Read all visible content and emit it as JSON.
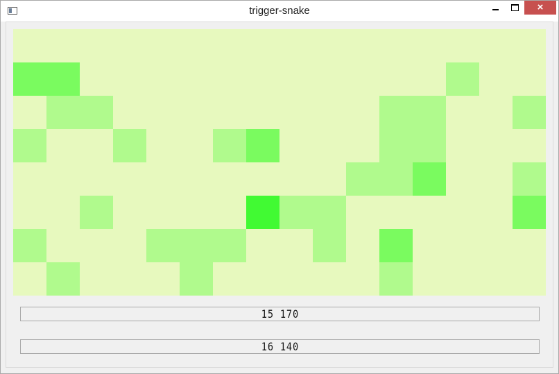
{
  "window": {
    "title": "trigger-snake",
    "icon": "app-window-icon",
    "controls": {
      "minimize": "minimize-icon",
      "maximize": "maximize-icon",
      "close": "×"
    }
  },
  "board": {
    "columns": 16,
    "rows": 8,
    "background": "#e7f9be",
    "level_colors": {
      "1": "#b0fa8d",
      "2": "#7afb5f",
      "3": "#41fa33"
    },
    "cells": [
      {
        "col": 0,
        "row": 1,
        "level": 2
      },
      {
        "col": 1,
        "row": 1,
        "level": 2
      },
      {
        "col": 13,
        "row": 1,
        "level": 1
      },
      {
        "col": 1,
        "row": 2,
        "level": 1
      },
      {
        "col": 2,
        "row": 2,
        "level": 1
      },
      {
        "col": 11,
        "row": 2,
        "level": 1
      },
      {
        "col": 12,
        "row": 2,
        "level": 1
      },
      {
        "col": 15,
        "row": 2,
        "level": 1
      },
      {
        "col": 0,
        "row": 3,
        "level": 1
      },
      {
        "col": 3,
        "row": 3,
        "level": 1
      },
      {
        "col": 6,
        "row": 3,
        "level": 1
      },
      {
        "col": 7,
        "row": 3,
        "level": 2
      },
      {
        "col": 11,
        "row": 3,
        "level": 1
      },
      {
        "col": 12,
        "row": 3,
        "level": 1
      },
      {
        "col": 10,
        "row": 4,
        "level": 1
      },
      {
        "col": 11,
        "row": 4,
        "level": 1
      },
      {
        "col": 12,
        "row": 4,
        "level": 2
      },
      {
        "col": 15,
        "row": 4,
        "level": 1
      },
      {
        "col": 2,
        "row": 5,
        "level": 1
      },
      {
        "col": 7,
        "row": 5,
        "level": 3
      },
      {
        "col": 8,
        "row": 5,
        "level": 1
      },
      {
        "col": 9,
        "row": 5,
        "level": 1
      },
      {
        "col": 15,
        "row": 5,
        "level": 2
      },
      {
        "col": 0,
        "row": 6,
        "level": 1
      },
      {
        "col": 4,
        "row": 6,
        "level": 1
      },
      {
        "col": 5,
        "row": 6,
        "level": 1
      },
      {
        "col": 6,
        "row": 6,
        "level": 1
      },
      {
        "col": 9,
        "row": 6,
        "level": 1
      },
      {
        "col": 11,
        "row": 6,
        "level": 2
      },
      {
        "col": 1,
        "row": 7,
        "level": 1
      },
      {
        "col": 5,
        "row": 7,
        "level": 1
      },
      {
        "col": 11,
        "row": 7,
        "level": 1
      }
    ]
  },
  "counters": [
    {
      "value": "15 170"
    },
    {
      "value": "16 140"
    }
  ]
}
